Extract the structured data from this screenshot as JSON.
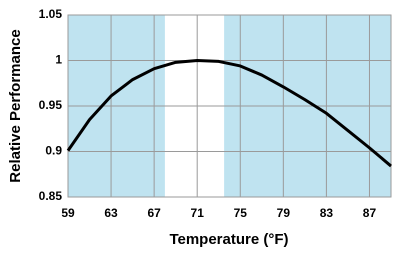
{
  "chart_data": {
    "type": "line",
    "x_label": "Temperature (°F)",
    "y_label": "Relative Performance",
    "x": [
      59,
      61,
      63,
      65,
      67,
      69,
      71,
      73,
      75,
      77,
      79,
      81,
      83,
      85,
      87,
      89
    ],
    "series": [
      {
        "color": "#000000",
        "values": [
          0.901,
          0.935,
          0.961,
          0.979,
          0.991,
          0.998,
          1.0,
          0.999,
          0.994,
          0.984,
          0.971,
          0.957,
          0.942,
          0.923,
          0.904,
          0.884
        ]
      }
    ],
    "shaded_ranges": [
      [
        59,
        68
      ],
      [
        73.5,
        89
      ]
    ],
    "shade_color": "#bfe3f0",
    "xlim": [
      59,
      89
    ],
    "xticks": [
      59,
      63,
      67,
      71,
      75,
      79,
      83,
      87
    ],
    "ylim": [
      0.85,
      1.05
    ],
    "yticks": [
      0.85,
      0.9,
      0.95,
      1,
      1.05
    ],
    "grid": true
  }
}
